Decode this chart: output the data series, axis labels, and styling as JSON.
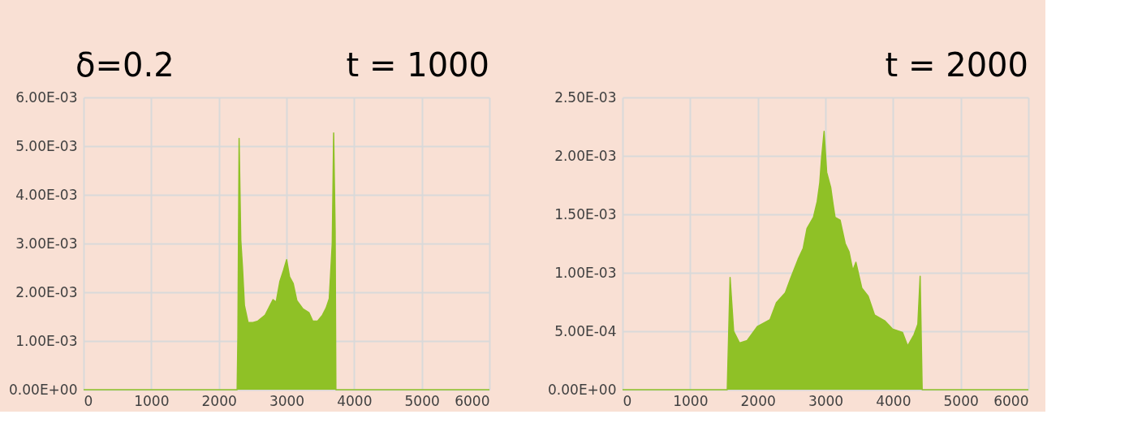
{
  "chart_data": [
    {
      "type": "area",
      "title": "t = 1000",
      "annotations": [
        "δ=0.2"
      ],
      "grid": true,
      "x": [
        0,
        2270,
        2281,
        2299,
        2324,
        2349,
        2378,
        2432,
        2504,
        2576,
        2684,
        2800,
        2847,
        2901,
        2955,
        3002,
        3045,
        3099,
        3153,
        3243,
        3333,
        3387,
        3459,
        3531,
        3586,
        3632,
        3676,
        3697,
        3719,
        3730,
        6000
      ],
      "series": [
        {
          "color": "#8fc126",
          "values": [
            0,
            0,
            0.00108,
            0.00516,
            0.00307,
            0.00252,
            0.00173,
            0.00138,
            0.00138,
            0.00141,
            0.00153,
            0.00185,
            0.0018,
            0.00222,
            0.00245,
            0.00267,
            0.00232,
            0.00218,
            0.00183,
            0.00166,
            0.00158,
            0.00141,
            0.00141,
            0.00153,
            0.00168,
            0.00187,
            0.003,
            0.00527,
            0.00326,
            0,
            0
          ]
        }
      ],
      "xlim": [
        0,
        6000
      ],
      "xticks": [
        0,
        1000,
        2000,
        3000,
        4000,
        5000,
        6000
      ],
      "ylim": [
        0,
        0.006
      ],
      "yticks": [
        {
          "value": 0,
          "label": "0.00E+00"
        },
        {
          "value": 0.001,
          "label": "1.00E-03"
        },
        {
          "value": 0.002,
          "label": "2.00E-03"
        },
        {
          "value": 0.003,
          "label": "3.00E-03"
        },
        {
          "value": 0.004,
          "label": "4.00E-03"
        },
        {
          "value": 0.005,
          "label": "5.00E-03"
        },
        {
          "value": 0.006,
          "label": "6.00E-03"
        }
      ]
    },
    {
      "type": "area",
      "title": "t = 2000",
      "grid": true,
      "x": [
        0,
        1548,
        1590,
        1643,
        1729,
        1842,
        1993,
        2181,
        2275,
        2407,
        2483,
        2595,
        2671,
        2727,
        2822,
        2878,
        2916,
        2942,
        2980,
        3018,
        3078,
        3112,
        3142,
        3217,
        3292,
        3349,
        3405,
        3450,
        3537,
        3631,
        3725,
        3876,
        3989,
        4140,
        4215,
        4309,
        4366,
        4400,
        4430,
        6000
      ],
      "series": [
        {
          "color": "#8fc126",
          "values": [
            0,
            0,
            0.00096,
            0.0005,
            0.0004,
            0.00042,
            0.00054,
            0.0006,
            0.000745,
            0.00083,
            0.00095,
            0.001115,
            0.00121,
            0.00138,
            0.001475,
            0.00161,
            0.00177,
            0.00198,
            0.00221,
            0.00186,
            0.00173,
            0.00159,
            0.001475,
            0.00145,
            0.00125,
            0.00118,
            0.00102,
            0.00109,
            0.00087,
            0.0008,
            0.00064,
            0.00059,
            0.00052,
            0.00049,
            0.000375,
            0.00047,
            0.00056,
            0.00097,
            0,
            0
          ]
        }
      ],
      "xlim": [
        0,
        6000
      ],
      "xticks": [
        0,
        1000,
        2000,
        3000,
        4000,
        5000,
        6000
      ],
      "ylim": [
        0,
        0.0025
      ],
      "yticks": [
        {
          "value": 0,
          "label": "0.00E+00"
        },
        {
          "value": 0.0005,
          "label": "5.00E-04"
        },
        {
          "value": 0.001,
          "label": "1.00E-03"
        },
        {
          "value": 0.0015,
          "label": "1.50E-03"
        },
        {
          "value": 0.002,
          "label": "2.00E-03"
        },
        {
          "value": 0.0025,
          "label": "2.50E-03"
        }
      ]
    }
  ]
}
